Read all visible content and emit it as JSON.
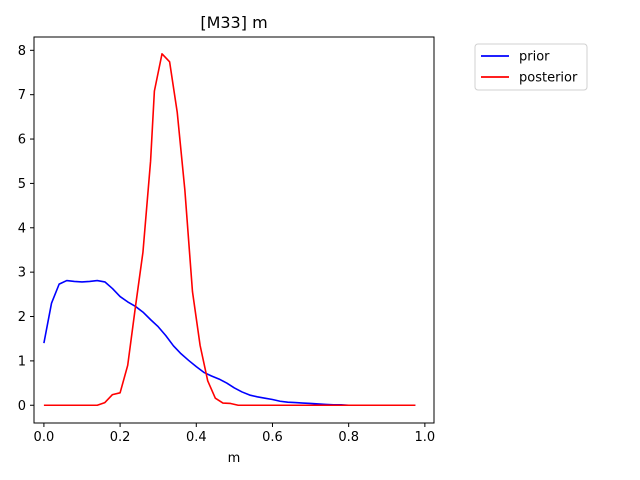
{
  "chart_data": {
    "type": "line",
    "title": "[M33] m",
    "xlabel": "m",
    "ylabel": "",
    "xlim": [
      -0.026,
      1.024
    ],
    "ylim": [
      -0.4,
      8.3
    ],
    "xticks": [
      0.0,
      0.2,
      0.4,
      0.6,
      0.8,
      1.0
    ],
    "xtick_labels": [
      "0.0",
      "0.2",
      "0.4",
      "0.6",
      "0.8",
      "1.0"
    ],
    "yticks": [
      0,
      1,
      2,
      3,
      4,
      5,
      6,
      7,
      8
    ],
    "ytick_labels": [
      "0",
      "1",
      "2",
      "3",
      "4",
      "5",
      "6",
      "7",
      "8"
    ],
    "grid": false,
    "legend_position": "outside-top-right",
    "series": [
      {
        "name": "prior",
        "color": "#0000ff",
        "x": [
          0.0,
          0.02,
          0.04,
          0.06,
          0.08,
          0.1,
          0.12,
          0.14,
          0.16,
          0.18,
          0.2,
          0.22,
          0.24,
          0.26,
          0.28,
          0.3,
          0.32,
          0.34,
          0.36,
          0.38,
          0.4,
          0.42,
          0.44,
          0.46,
          0.48,
          0.5,
          0.52,
          0.54,
          0.56,
          0.58,
          0.6,
          0.62,
          0.64,
          0.66,
          0.68,
          0.7,
          0.72,
          0.74,
          0.76,
          0.78,
          0.8,
          0.85,
          0.9,
          0.95,
          0.975
        ],
        "y": [
          1.4,
          2.3,
          2.73,
          2.81,
          2.79,
          2.78,
          2.79,
          2.81,
          2.78,
          2.63,
          2.45,
          2.33,
          2.23,
          2.1,
          1.93,
          1.77,
          1.57,
          1.34,
          1.16,
          1.01,
          0.87,
          0.74,
          0.66,
          0.59,
          0.5,
          0.39,
          0.3,
          0.23,
          0.19,
          0.16,
          0.13,
          0.09,
          0.07,
          0.06,
          0.05,
          0.04,
          0.03,
          0.02,
          0.01,
          0.01,
          0.0,
          0.0,
          0.0,
          0.0,
          0.0
        ]
      },
      {
        "name": "posterior",
        "color": "#ff0000",
        "x": [
          0.0,
          0.02,
          0.04,
          0.06,
          0.08,
          0.1,
          0.12,
          0.14,
          0.16,
          0.18,
          0.2,
          0.22,
          0.24,
          0.26,
          0.28,
          0.29,
          0.31,
          0.33,
          0.35,
          0.37,
          0.39,
          0.41,
          0.43,
          0.45,
          0.47,
          0.49,
          0.51,
          0.55,
          0.6,
          0.7,
          0.8,
          0.9,
          0.975
        ],
        "y": [
          0.0,
          0.0,
          0.0,
          0.0,
          0.0,
          0.0,
          0.0,
          0.0,
          0.06,
          0.24,
          0.28,
          0.9,
          2.2,
          3.45,
          5.5,
          7.08,
          7.92,
          7.74,
          6.6,
          4.85,
          2.56,
          1.35,
          0.55,
          0.16,
          0.05,
          0.04,
          0.0,
          0.0,
          0.0,
          0.0,
          0.0,
          0.0,
          0.0
        ]
      }
    ]
  }
}
